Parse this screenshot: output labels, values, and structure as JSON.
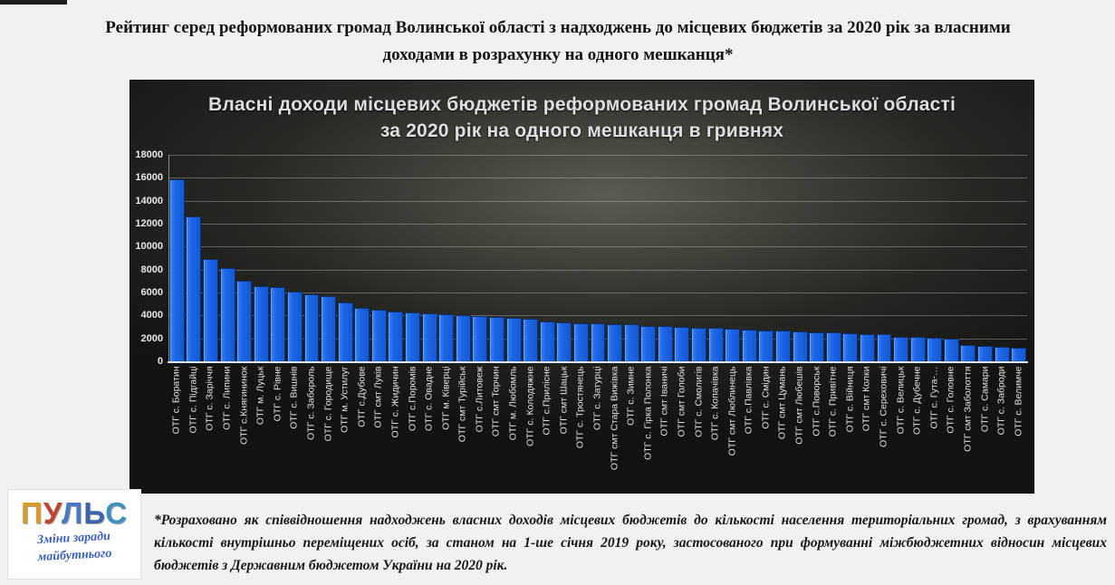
{
  "page_title": "Рейтинг серед реформованих громад Волинської області з надходжень до місцевих бюджетів за 2020 рік за власними доходами в розрахунку на одного мешканця*",
  "chart": {
    "title_line1": "Власні доходи місцевих бюджетів реформованих громад Волинської області",
    "title_line2": "за 2020 рік на одного мешканця в гривнях"
  },
  "chart_data": {
    "type": "bar",
    "title": "Власні доходи місцевих бюджетів реформованих громад Волинської області за 2020 рік на одного мешканця в гривнях",
    "xlabel": "",
    "ylabel": "",
    "ylim": [
      0,
      18000
    ],
    "ytick_step": 2000,
    "grid": true,
    "legend": "none",
    "bar_color": "#1e66e6",
    "categories": [
      "ОТГ с. Боратин",
      "ОТГ с. Підгайці",
      "ОТГ с. Заріччя",
      "ОТГ с. Липини",
      "ОТГ с.Княгининок",
      "ОТГ м. Луцьк",
      "ОТГ с. Рівне",
      "ОТГ с. Вишнів",
      "ОТГ с. Забороль",
      "ОТГ с. Городище",
      "ОТГ м. Устилуг",
      "ОТГ с.Дубове",
      "ОТГ смт Луків",
      "ОТГ с. Жидичин",
      "ОТГ с.Поромів",
      "ОТГ с. Овадне",
      "ОТГ м. Ківерці",
      "ОТГ смт Турійськ",
      "ОТГ с.Литовеж",
      "ОТГ смт Торчин",
      "ОТГ м. Любомль",
      "ОТГ с. Колодяжне",
      "ОТГ с.Прилісне",
      "ОТГ смт Шацьк",
      "ОТГ с. Тростянець",
      "ОТГ с. Затурці",
      "ОТГ смт Стара Вижівка",
      "ОТГ с. Зимне",
      "ОТГ с. Гірка Полонка",
      "ОТГ смт Іваничі",
      "ОТГ смт Голоби",
      "ОТГ с. Смолигів",
      "ОТГ с. Копачівка",
      "ОТГ смт Люблинець",
      "ОТГ с.Павлівка",
      "ОТГ с. Смідин",
      "ОТГ смт Цумань",
      "ОТГ смт Любешів",
      "ОТГ с.Поворськ",
      "ОТГ с. Привітне",
      "ОТГ с. Війниця",
      "ОТГ смт Колки",
      "ОТГ с. Сереховичі",
      "ОТГ с. Велицьк",
      "ОТГ с. Дубечне",
      "ОТГ с. Гута-…",
      "ОТГ с. Головне",
      "ОТГ смт Заболоття",
      "ОТГ с. Самари",
      "ОТГ с. Заброди",
      "ОТГ с. Велимче"
    ],
    "values": [
      15900,
      12600,
      8950,
      8100,
      7050,
      6550,
      6450,
      6100,
      5850,
      5650,
      5100,
      4650,
      4500,
      4350,
      4250,
      4150,
      4100,
      4000,
      3950,
      3850,
      3800,
      3700,
      3500,
      3400,
      3350,
      3300,
      3250,
      3200,
      3100,
      3050,
      3000,
      2950,
      2900,
      2850,
      2750,
      2700,
      2650,
      2600,
      2550,
      2500,
      2450,
      2400,
      2350,
      2150,
      2100,
      2050,
      2000,
      1450,
      1350,
      1250,
      1150
    ]
  },
  "footer": {
    "note": "*Розраховано як співвідношення надходжень власних доходів місцевих бюджетів до кількості населення територіальних громад, з врахуванням кількості внутрішньо переміщених осіб, за станом на 1-ше січня 2019 року, застосованого при формуванні міжбюджетних відносин місцевих бюджетів з Державним бюджетом України на 2020 рік.",
    "logo": {
      "brand": "ПУЛЬС",
      "brand_letter_colors": [
        "#d89b2a",
        "#c0452e",
        "#4a78c4",
        "#3f64ae",
        "#3f8fc0"
      ],
      "tagline_line1": "Зміни заради",
      "tagline_line2": "майбутнього"
    }
  }
}
